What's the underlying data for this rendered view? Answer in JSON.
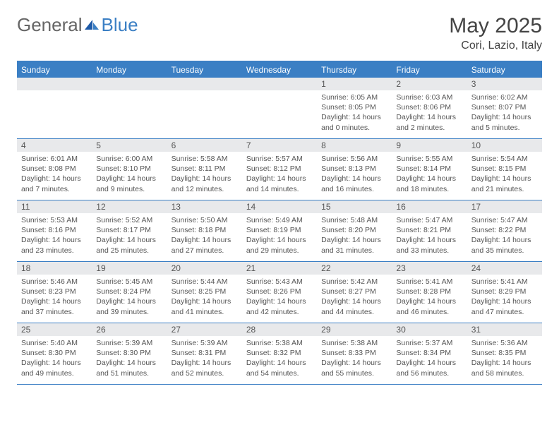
{
  "logo": {
    "part1": "General",
    "part2": "Blue"
  },
  "title": "May 2025",
  "location": "Cori, Lazio, Italy",
  "colors": {
    "accent": "#3b7fc4",
    "daynum_bg": "#e8e9eb",
    "text": "#555555",
    "title_text": "#444444"
  },
  "weekdays": [
    "Sunday",
    "Monday",
    "Tuesday",
    "Wednesday",
    "Thursday",
    "Friday",
    "Saturday"
  ],
  "weeks": [
    [
      {
        "empty": true
      },
      {
        "empty": true
      },
      {
        "empty": true
      },
      {
        "empty": true
      },
      {
        "num": "1",
        "sunrise": "Sunrise: 6:05 AM",
        "sunset": "Sunset: 8:05 PM",
        "daylight": "Daylight: 14 hours and 0 minutes."
      },
      {
        "num": "2",
        "sunrise": "Sunrise: 6:03 AM",
        "sunset": "Sunset: 8:06 PM",
        "daylight": "Daylight: 14 hours and 2 minutes."
      },
      {
        "num": "3",
        "sunrise": "Sunrise: 6:02 AM",
        "sunset": "Sunset: 8:07 PM",
        "daylight": "Daylight: 14 hours and 5 minutes."
      }
    ],
    [
      {
        "num": "4",
        "sunrise": "Sunrise: 6:01 AM",
        "sunset": "Sunset: 8:08 PM",
        "daylight": "Daylight: 14 hours and 7 minutes."
      },
      {
        "num": "5",
        "sunrise": "Sunrise: 6:00 AM",
        "sunset": "Sunset: 8:10 PM",
        "daylight": "Daylight: 14 hours and 9 minutes."
      },
      {
        "num": "6",
        "sunrise": "Sunrise: 5:58 AM",
        "sunset": "Sunset: 8:11 PM",
        "daylight": "Daylight: 14 hours and 12 minutes."
      },
      {
        "num": "7",
        "sunrise": "Sunrise: 5:57 AM",
        "sunset": "Sunset: 8:12 PM",
        "daylight": "Daylight: 14 hours and 14 minutes."
      },
      {
        "num": "8",
        "sunrise": "Sunrise: 5:56 AM",
        "sunset": "Sunset: 8:13 PM",
        "daylight": "Daylight: 14 hours and 16 minutes."
      },
      {
        "num": "9",
        "sunrise": "Sunrise: 5:55 AM",
        "sunset": "Sunset: 8:14 PM",
        "daylight": "Daylight: 14 hours and 18 minutes."
      },
      {
        "num": "10",
        "sunrise": "Sunrise: 5:54 AM",
        "sunset": "Sunset: 8:15 PM",
        "daylight": "Daylight: 14 hours and 21 minutes."
      }
    ],
    [
      {
        "num": "11",
        "sunrise": "Sunrise: 5:53 AM",
        "sunset": "Sunset: 8:16 PM",
        "daylight": "Daylight: 14 hours and 23 minutes."
      },
      {
        "num": "12",
        "sunrise": "Sunrise: 5:52 AM",
        "sunset": "Sunset: 8:17 PM",
        "daylight": "Daylight: 14 hours and 25 minutes."
      },
      {
        "num": "13",
        "sunrise": "Sunrise: 5:50 AM",
        "sunset": "Sunset: 8:18 PM",
        "daylight": "Daylight: 14 hours and 27 minutes."
      },
      {
        "num": "14",
        "sunrise": "Sunrise: 5:49 AM",
        "sunset": "Sunset: 8:19 PM",
        "daylight": "Daylight: 14 hours and 29 minutes."
      },
      {
        "num": "15",
        "sunrise": "Sunrise: 5:48 AM",
        "sunset": "Sunset: 8:20 PM",
        "daylight": "Daylight: 14 hours and 31 minutes."
      },
      {
        "num": "16",
        "sunrise": "Sunrise: 5:47 AM",
        "sunset": "Sunset: 8:21 PM",
        "daylight": "Daylight: 14 hours and 33 minutes."
      },
      {
        "num": "17",
        "sunrise": "Sunrise: 5:47 AM",
        "sunset": "Sunset: 8:22 PM",
        "daylight": "Daylight: 14 hours and 35 minutes."
      }
    ],
    [
      {
        "num": "18",
        "sunrise": "Sunrise: 5:46 AM",
        "sunset": "Sunset: 8:23 PM",
        "daylight": "Daylight: 14 hours and 37 minutes."
      },
      {
        "num": "19",
        "sunrise": "Sunrise: 5:45 AM",
        "sunset": "Sunset: 8:24 PM",
        "daylight": "Daylight: 14 hours and 39 minutes."
      },
      {
        "num": "20",
        "sunrise": "Sunrise: 5:44 AM",
        "sunset": "Sunset: 8:25 PM",
        "daylight": "Daylight: 14 hours and 41 minutes."
      },
      {
        "num": "21",
        "sunrise": "Sunrise: 5:43 AM",
        "sunset": "Sunset: 8:26 PM",
        "daylight": "Daylight: 14 hours and 42 minutes."
      },
      {
        "num": "22",
        "sunrise": "Sunrise: 5:42 AM",
        "sunset": "Sunset: 8:27 PM",
        "daylight": "Daylight: 14 hours and 44 minutes."
      },
      {
        "num": "23",
        "sunrise": "Sunrise: 5:41 AM",
        "sunset": "Sunset: 8:28 PM",
        "daylight": "Daylight: 14 hours and 46 minutes."
      },
      {
        "num": "24",
        "sunrise": "Sunrise: 5:41 AM",
        "sunset": "Sunset: 8:29 PM",
        "daylight": "Daylight: 14 hours and 47 minutes."
      }
    ],
    [
      {
        "num": "25",
        "sunrise": "Sunrise: 5:40 AM",
        "sunset": "Sunset: 8:30 PM",
        "daylight": "Daylight: 14 hours and 49 minutes."
      },
      {
        "num": "26",
        "sunrise": "Sunrise: 5:39 AM",
        "sunset": "Sunset: 8:30 PM",
        "daylight": "Daylight: 14 hours and 51 minutes."
      },
      {
        "num": "27",
        "sunrise": "Sunrise: 5:39 AM",
        "sunset": "Sunset: 8:31 PM",
        "daylight": "Daylight: 14 hours and 52 minutes."
      },
      {
        "num": "28",
        "sunrise": "Sunrise: 5:38 AM",
        "sunset": "Sunset: 8:32 PM",
        "daylight": "Daylight: 14 hours and 54 minutes."
      },
      {
        "num": "29",
        "sunrise": "Sunrise: 5:38 AM",
        "sunset": "Sunset: 8:33 PM",
        "daylight": "Daylight: 14 hours and 55 minutes."
      },
      {
        "num": "30",
        "sunrise": "Sunrise: 5:37 AM",
        "sunset": "Sunset: 8:34 PM",
        "daylight": "Daylight: 14 hours and 56 minutes."
      },
      {
        "num": "31",
        "sunrise": "Sunrise: 5:36 AM",
        "sunset": "Sunset: 8:35 PM",
        "daylight": "Daylight: 14 hours and 58 minutes."
      }
    ]
  ]
}
